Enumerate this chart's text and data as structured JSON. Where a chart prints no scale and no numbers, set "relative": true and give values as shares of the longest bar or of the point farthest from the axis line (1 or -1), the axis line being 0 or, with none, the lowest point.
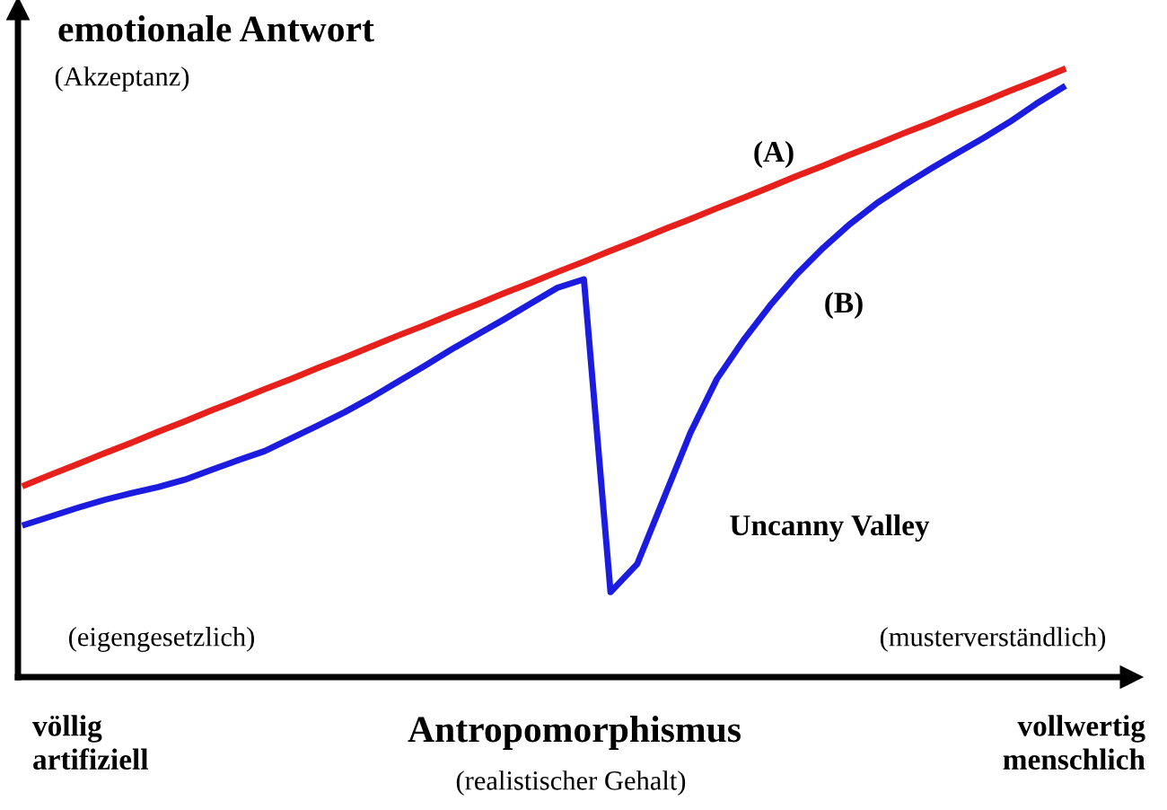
{
  "chart_data": {
    "type": "line",
    "relative": true,
    "ylabel": "emotionale Antwort",
    "xlabel": "Antropomorphismus",
    "categories": [
      null,
      null,
      null,
      null,
      null,
      null,
      null,
      null,
      null,
      null,
      null,
      null,
      null,
      null,
      null,
      null,
      null,
      null,
      null,
      null,
      null,
      null,
      null,
      null,
      null,
      null,
      null,
      null,
      null,
      null,
      null,
      null,
      null,
      null,
      null,
      null,
      null,
      null,
      null,
      null
    ],
    "series": [
      {
        "color": "#e8201c",
        "values": [
          0.316,
          0.334,
          0.351,
          0.369,
          0.386,
          0.404,
          0.421,
          0.439,
          0.456,
          0.474,
          0.491,
          0.509,
          0.526,
          0.544,
          0.562,
          0.579,
          0.597,
          0.614,
          0.632,
          0.649,
          0.667,
          0.684,
          0.702,
          0.719,
          0.737,
          0.754,
          0.772,
          0.789,
          0.807,
          0.825,
          0.842,
          0.86,
          0.877,
          0.895,
          0.912,
          0.93,
          0.947,
          0.965,
          0.982,
          1
        ]
      },
      {
        "color": "#1c1ce0",
        "values": [
          0.251,
          0.265,
          0.279,
          0.292,
          0.303,
          0.313,
          0.325,
          0.341,
          0.357,
          0.372,
          0.393,
          0.414,
          0.436,
          0.46,
          0.486,
          0.512,
          0.539,
          0.564,
          0.589,
          0.615,
          0.641,
          0.655,
          0.14,
          0.186,
          0.294,
          0.402,
          0.491,
          0.555,
          0.612,
          0.663,
          0.707,
          0.746,
          0.78,
          0.809,
          0.836,
          0.862,
          0.887,
          0.914,
          0.944,
          0.971
        ]
      }
    ],
    "annotations": [
      "(Akzeptanz)",
      "(A)",
      "(B)",
      "Uncanny Valley",
      "(eigengesetzlich)",
      "(musterverständlich)",
      "völlig\nartifiziell",
      "(realistischer Gehalt)",
      "vollwertig\nmenschlich"
    ],
    "marker": "none",
    "line_style": "solid"
  }
}
